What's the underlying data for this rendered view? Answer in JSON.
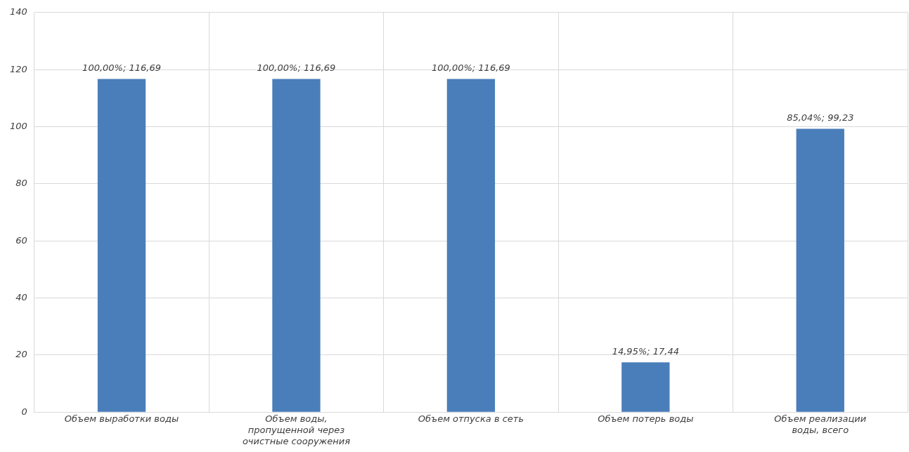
{
  "chart_data": {
    "type": "bar",
    "categories": [
      "Объем выработки воды",
      "Объем воды, пропущенной через очистные сооружения",
      "Объем отпуска в сеть",
      "Объем потерь воды",
      "Объем реализации воды, всего"
    ],
    "values": [
      116.69,
      116.69,
      116.69,
      17.44,
      99.23
    ],
    "value_labels": [
      "100,00%; 116,69",
      "100,00%; 116,69",
      "100,00%; 116,69",
      "14,95%; 17,44",
      "85,04%; 99,23"
    ],
    "color": "#4a7ebb",
    "ylim": [
      0,
      140
    ],
    "yticks": [
      0,
      20,
      40,
      60,
      80,
      100,
      120,
      140
    ],
    "grid": true
  }
}
